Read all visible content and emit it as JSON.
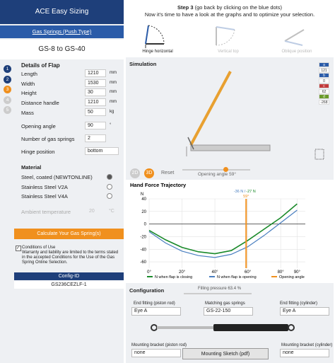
{
  "sidebar": {
    "app_title": "ACE Easy Sizing",
    "tab": "Gas Springs (Push Type)",
    "range": "GS-8 to GS-40",
    "steps": [
      "1",
      "2",
      "3",
      "4",
      "5"
    ],
    "details_title": "Details of Flap",
    "fields": [
      {
        "label": "Length",
        "value": 1210,
        "unit": "mm"
      },
      {
        "label": "Width",
        "value": 1530,
        "unit": "mm"
      },
      {
        "label": "Height",
        "value": 30,
        "unit": "mm"
      },
      {
        "label": "Distance handle",
        "value": 1210,
        "unit": "mm"
      },
      {
        "label": "Mass",
        "value": 50,
        "unit": "kg"
      },
      {
        "label": "Opening angle",
        "value": 90,
        "unit": "°"
      },
      {
        "label": "Number of gas springs",
        "value": 2
      },
      {
        "label": "Hinge position",
        "value": "bottom"
      }
    ],
    "material_title": "Material",
    "materials": [
      "Steel, coated (NEWTONLINE)",
      "Stainless Steel V2A",
      "Stainless Steel V4A"
    ],
    "ambient": {
      "label": "Ambient temperature",
      "value": 20,
      "unit": "°C"
    },
    "calculate_button": "Calculate Your Gas Spring(s)",
    "conditions_title": "Conditions of Use",
    "conditions_text": "Warranty and liability are limited to the terms stated in the accepted Conditions for the Use of the Gas Spring Online Selection.",
    "config_id_title": "Config-ID",
    "config_id": "GS236CEZLF-1"
  },
  "step": {
    "heading": "Step 3",
    "heading_note": "(go back by clicking on the blue dots)",
    "text": "Now it's time to have a look at the graphs and to optimize your selection.",
    "options": [
      "Hinge horizontal",
      "Vertical top",
      "Oblique position"
    ]
  },
  "simulation": {
    "title": "Simulation",
    "legend": [
      "a",
      "121",
      "b",
      "0",
      "c",
      "62",
      "d",
      "-268"
    ],
    "buttons": [
      "2D",
      "3D"
    ],
    "reset": "Reset",
    "slider_label": "Opening angle 59°"
  },
  "chart": {
    "type": "line",
    "title": "Hand Force Trajectory",
    "y_label": "N",
    "annotation_opening": "-36 N /",
    "annotation_closing": "-27 N",
    "annotation_angle": "59°",
    "x": [
      0,
      10,
      20,
      30,
      40,
      50,
      60,
      70,
      80,
      90
    ],
    "series": [
      {
        "name": "N when flap is closing",
        "color": "#1a8a2a",
        "values": [
          -10,
          -25,
          -37,
          -44,
          -47,
          -42,
          -26,
          -8,
          10,
          32
        ]
      },
      {
        "name": "N when flap is opening",
        "color": "#4a7fc0",
        "values": [
          -12,
          -30,
          -43,
          -50,
          -53,
          -48,
          -36,
          -18,
          2,
          22
        ]
      }
    ],
    "opening_angle": {
      "name": "Opening angle",
      "color": "#f0901e",
      "value": 59
    },
    "xlim": [
      0,
      95
    ],
    "ylim": [
      -70,
      40
    ],
    "xticks": [
      {
        "value": 0,
        "label": "0°"
      },
      {
        "value": 20,
        "label": "20°"
      },
      {
        "value": 40,
        "label": "40°"
      },
      {
        "value": 60,
        "label": "60°"
      },
      {
        "value": 80,
        "label": "80°"
      },
      {
        "value": 90,
        "label": "90°"
      }
    ],
    "yticks": [
      40,
      20,
      0,
      -20,
      -40,
      -60
    ],
    "grid": true
  },
  "configuration": {
    "title": "Configuration",
    "filling_pressure": "Filling pressure 63.4 %",
    "end_fitting_rod": {
      "label": "End fitting (piston rod)",
      "value": "Eye A"
    },
    "matching": {
      "label": "Matching gas springs",
      "value": "GS-22-150"
    },
    "end_fitting_cyl": {
      "label": "End fitting (cylinder)",
      "value": "Eye A"
    },
    "bracket_rod": {
      "label": "Mounting bracket (piston rod)",
      "value": "none"
    },
    "sketch_button": "Mounting Sketch (pdf)",
    "bracket_cyl": {
      "label": "Mounting bracket (cylinder)",
      "value": "none"
    }
  }
}
